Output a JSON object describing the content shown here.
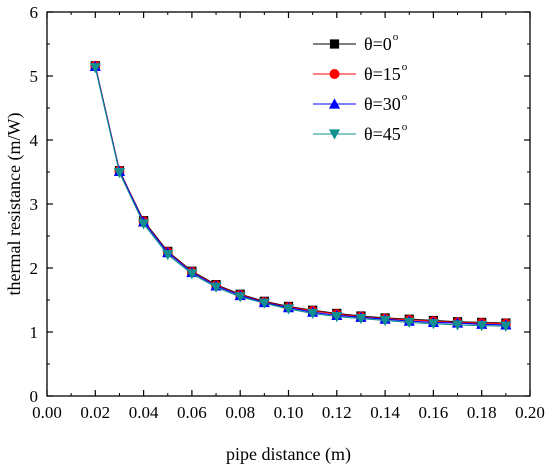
{
  "chart_data": {
    "type": "line",
    "xlabel": "pipe distance (m)",
    "ylabel": "thermal resistance (m/W)",
    "xlim": [
      0.0,
      0.2
    ],
    "ylim": [
      0,
      6
    ],
    "x_ticks": [
      "0.00",
      "0.02",
      "0.04",
      "0.06",
      "0.08",
      "0.10",
      "0.12",
      "0.14",
      "0.16",
      "0.18",
      "0.20"
    ],
    "y_ticks": [
      "0",
      "1",
      "2",
      "3",
      "4",
      "5",
      "6"
    ],
    "legend_position": "top-right",
    "x": [
      0.02,
      0.03,
      0.04,
      0.05,
      0.06,
      0.07,
      0.08,
      0.09,
      0.1,
      0.11,
      0.12,
      0.13,
      0.14,
      0.15,
      0.16,
      0.17,
      0.18,
      0.19
    ],
    "series": [
      {
        "name": "θ=0",
        "sup": "o",
        "color": "#000000",
        "marker": "square",
        "values": [
          5.16,
          3.52,
          2.74,
          2.26,
          1.95,
          1.74,
          1.59,
          1.48,
          1.4,
          1.34,
          1.29,
          1.25,
          1.22,
          1.2,
          1.18,
          1.16,
          1.15,
          1.14
        ]
      },
      {
        "name": "θ=15",
        "sup": "o",
        "color": "#ff0000",
        "marker": "circle",
        "values": [
          5.16,
          3.52,
          2.73,
          2.25,
          1.94,
          1.73,
          1.58,
          1.47,
          1.39,
          1.33,
          1.28,
          1.24,
          1.21,
          1.19,
          1.17,
          1.15,
          1.14,
          1.13
        ]
      },
      {
        "name": "θ=30",
        "sup": "o",
        "color": "#0000ff",
        "marker": "triangle-up",
        "values": [
          5.15,
          3.51,
          2.72,
          2.24,
          1.93,
          1.72,
          1.57,
          1.46,
          1.38,
          1.31,
          1.26,
          1.23,
          1.2,
          1.17,
          1.15,
          1.14,
          1.12,
          1.11
        ]
      },
      {
        "name": "θ=45",
        "sup": "o",
        "color": "#108f8f",
        "marker": "triangle-down",
        "values": [
          5.13,
          3.49,
          2.69,
          2.21,
          1.91,
          1.7,
          1.55,
          1.45,
          1.36,
          1.29,
          1.24,
          1.21,
          1.18,
          1.15,
          1.13,
          1.11,
          1.1,
          1.09
        ]
      }
    ]
  }
}
